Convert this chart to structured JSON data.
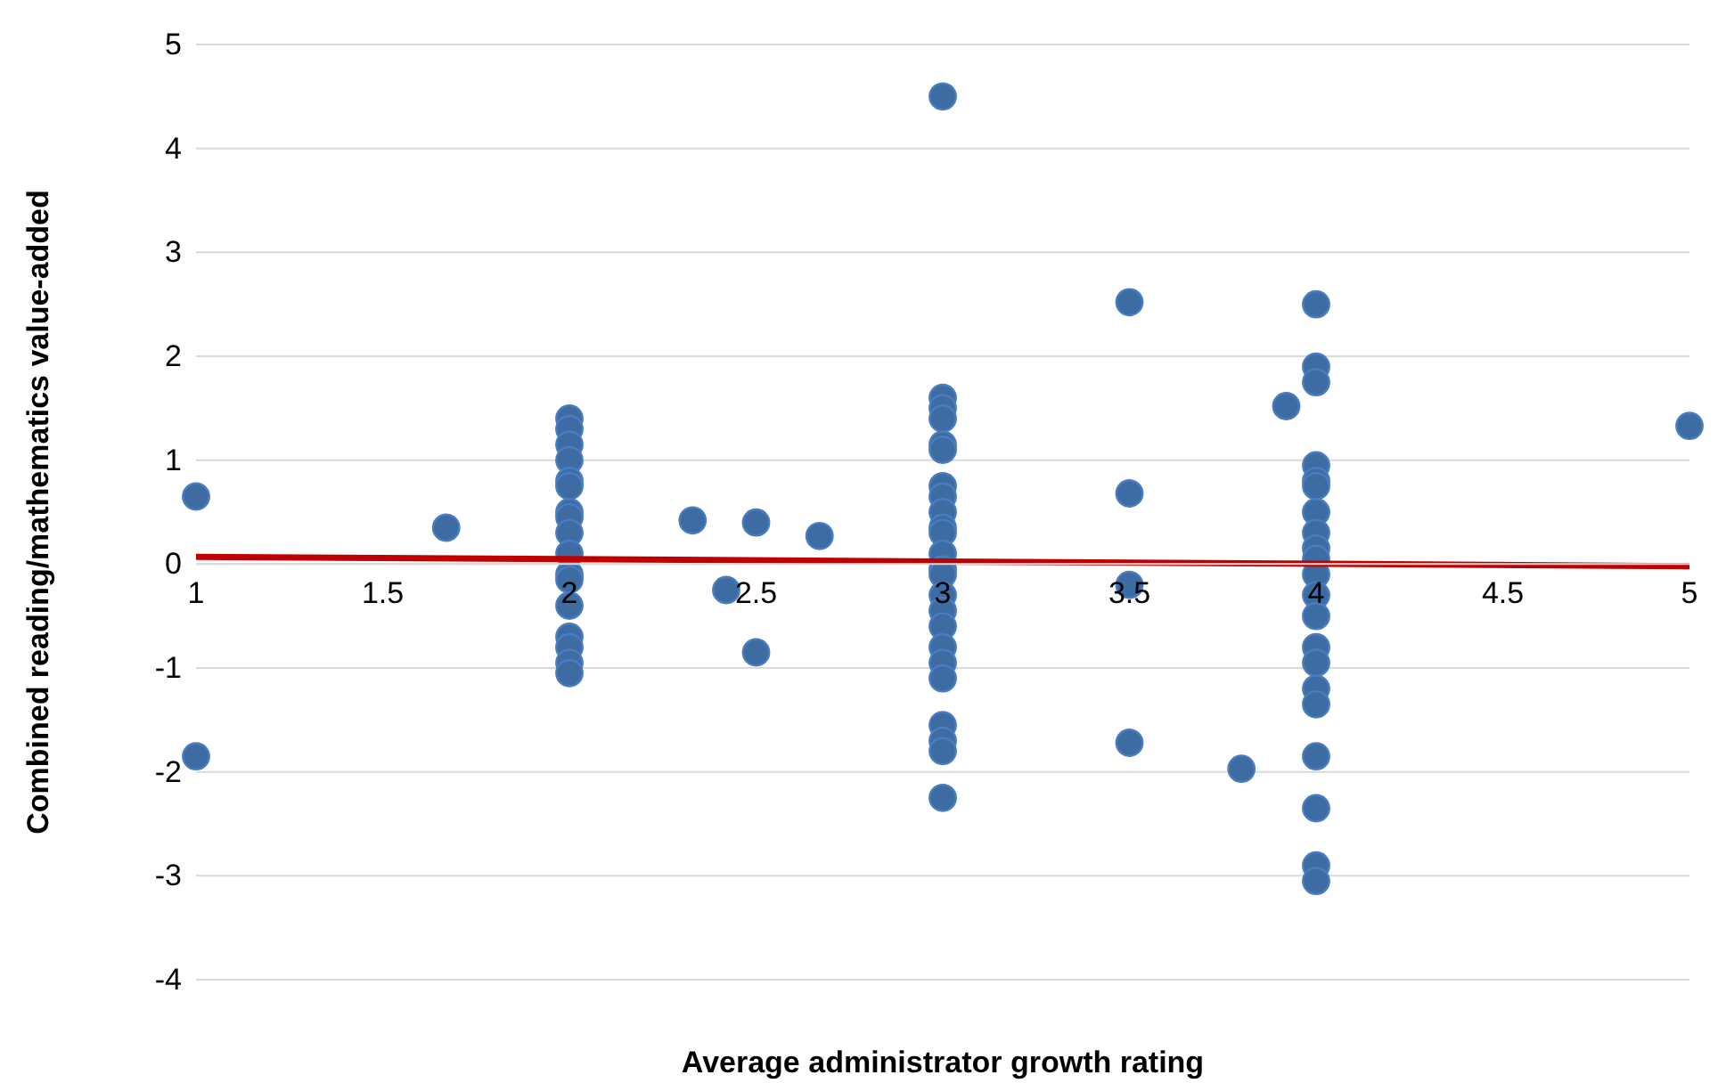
{
  "chart_data": {
    "type": "scatter",
    "xlabel": "Average administrator growth rating",
    "ylabel": "Combined reading/mathematics value-added",
    "xlim": [
      1,
      5
    ],
    "xticks": [
      1,
      1.5,
      2,
      2.5,
      3,
      3.5,
      4,
      4.5,
      5
    ],
    "ylim": [
      -4,
      5
    ],
    "yticks": [
      -4,
      -3,
      -2,
      -1,
      0,
      1,
      2,
      3,
      4,
      5
    ],
    "grid": "y",
    "marker": "circle",
    "series": [
      {
        "color": "#3d6ca3",
        "x": [
          1,
          1,
          1.67,
          2,
          2,
          2,
          2,
          2,
          2,
          2,
          2,
          2,
          2,
          2,
          2,
          2,
          2,
          2,
          2,
          2,
          2.33,
          2.42,
          2.5,
          2.5,
          2.67,
          3,
          3,
          3,
          3,
          3,
          3,
          3,
          3,
          3,
          3,
          3,
          3,
          3,
          3,
          3,
          3,
          3,
          3,
          3,
          3,
          3,
          3,
          3,
          3,
          3.5,
          3.5,
          3.5,
          3.5,
          3.8,
          3.92,
          4,
          4,
          4,
          4,
          4,
          4,
          4,
          4,
          4,
          4,
          4,
          4,
          4,
          4,
          4,
          4,
          4,
          4,
          4,
          4,
          4,
          5
        ],
        "values": [
          0.65,
          -1.85,
          0.35,
          1.4,
          1.3,
          1.15,
          1,
          0.8,
          0.75,
          0.5,
          0.45,
          0.3,
          0.1,
          -0.1,
          -0.15,
          -0.4,
          -0.7,
          -0.8,
          -0.95,
          -1.05,
          0.42,
          -0.25,
          0.4,
          -0.85,
          0.27,
          4.5,
          1.6,
          1.5,
          1.4,
          1.15,
          1.1,
          0.75,
          0.65,
          0.5,
          0.35,
          0.3,
          0.1,
          -0.05,
          -0.1,
          -0.3,
          -0.45,
          -0.6,
          -0.8,
          -0.95,
          -1.1,
          -1.55,
          -1.7,
          -1.8,
          -2.25,
          2.52,
          0.68,
          -0.2,
          -1.72,
          -1.97,
          1.52,
          2.5,
          1.9,
          1.75,
          0.95,
          0.8,
          0.75,
          0.5,
          0.3,
          0.15,
          0.05,
          -0.1,
          -0.3,
          -0.5,
          -0.8,
          -0.95,
          -1.2,
          -1.35,
          -1.85,
          -2.35,
          -2.9,
          -3.05,
          1.33
        ]
      },
      {
        "type": "line",
        "color": "#c00000",
        "x": [
          1,
          5
        ],
        "values": [
          0.07,
          -0.02
        ],
        "marker": "none"
      }
    ]
  }
}
